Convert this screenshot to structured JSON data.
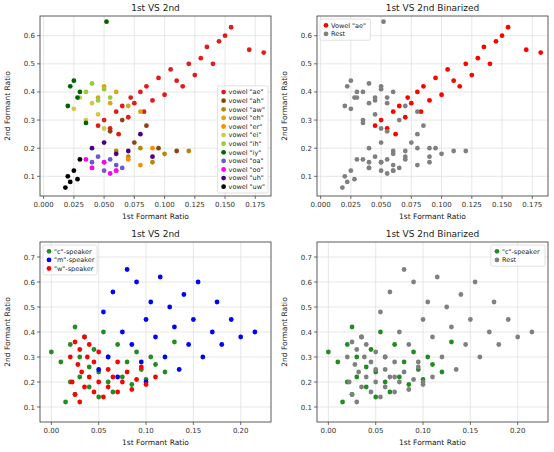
{
  "chart_data": [
    {
      "type": "scatter",
      "title": "1st VS 2nd",
      "x_label": "1st Formant Ratio",
      "y_label": "2nd Formant Ratio",
      "xlim": [
        -0.003,
        0.188
      ],
      "ylim": [
        0.03,
        0.67
      ],
      "xticks": [
        {
          "value": 0,
          "label": "0.000"
        },
        0.025,
        {
          "value": 0.05,
          "label": "0.050"
        },
        0.075,
        {
          "value": 0.1,
          "label": "0.100"
        },
        0.125,
        {
          "value": 0.15,
          "label": "0.150"
        },
        0.175
      ],
      "yticks": [
        0.1,
        0.2,
        0.3,
        0.4,
        0.5,
        0.6
      ],
      "grid": true,
      "legend": "lower right",
      "marker": "circle",
      "series": [
        {
          "name": "vowel \"ae\"",
          "color": "#e31a1c",
          "x": [
            0.045,
            0.05,
            0.055,
            0.06,
            0.062,
            0.065,
            0.07,
            0.072,
            0.075,
            0.08,
            0.083,
            0.085,
            0.09,
            0.095,
            0.1,
            0.105,
            0.11,
            0.115,
            0.12,
            0.125,
            0.13,
            0.135,
            0.14,
            0.145,
            0.15,
            0.155,
            0.17,
            0.182
          ],
          "values": [
            0.28,
            0.3,
            0.27,
            0.33,
            0.25,
            0.35,
            0.31,
            0.38,
            0.36,
            0.4,
            0.33,
            0.42,
            0.37,
            0.45,
            0.39,
            0.48,
            0.44,
            0.42,
            0.5,
            0.46,
            0.52,
            0.56,
            0.5,
            0.58,
            0.6,
            0.63,
            0.55,
            0.54
          ]
        },
        {
          "name": "vowel \"ah\"",
          "color": "#8b4513",
          "x": [
            0.055,
            0.065,
            0.075,
            0.085,
            0.095,
            0.11
          ],
          "values": [
            0.26,
            0.3,
            0.22,
            0.28,
            0.2,
            0.19
          ]
        },
        {
          "name": "vowel \"aw\"",
          "color": "#b8860b",
          "x": [
            0.06,
            0.07,
            0.08,
            0.09,
            0.1,
            0.12
          ],
          "values": [
            0.19,
            0.17,
            0.2,
            0.15,
            0.18,
            0.19
          ]
        },
        {
          "name": "vowel \"eh\"",
          "color": "#daa520",
          "x": [
            0.045,
            0.05,
            0.055,
            0.06,
            0.07,
            0.08
          ],
          "values": [
            0.38,
            0.42,
            0.36,
            0.4,
            0.35,
            0.33
          ]
        },
        {
          "name": "vowel \"er\"",
          "color": "#ff8c00",
          "x": [
            0.04,
            0.05,
            0.06,
            0.07,
            0.08,
            0.09
          ],
          "values": [
            0.13,
            0.15,
            0.12,
            0.16,
            0.14,
            0.2
          ]
        },
        {
          "name": "vowel \"ei\"",
          "color": "#d4c84a",
          "x": [
            0.025,
            0.03,
            0.035,
            0.04,
            0.045,
            0.05
          ],
          "values": [
            0.34,
            0.38,
            0.3,
            0.36,
            0.32,
            0.27
          ]
        },
        {
          "name": "vowel \"ih\"",
          "color": "#9acd32",
          "x": [
            0.035,
            0.04,
            0.045,
            0.05,
            0.055
          ],
          "values": [
            0.4,
            0.43,
            0.37,
            0.41,
            0.38
          ]
        },
        {
          "name": "vowel \"iy\"",
          "color": "#006400",
          "x": [
            0.02,
            0.022,
            0.025,
            0.028,
            0.03,
            0.035,
            0.052
          ],
          "values": [
            0.35,
            0.42,
            0.44,
            0.38,
            0.4,
            0.29,
            0.65
          ]
        },
        {
          "name": "vowel \"oa\"",
          "color": "#6a5acd",
          "x": [
            0.04,
            0.045,
            0.05,
            0.055,
            0.06,
            0.065
          ],
          "values": [
            0.15,
            0.17,
            0.12,
            0.16,
            0.14,
            0.13
          ]
        },
        {
          "name": "vowel \"oo\"",
          "color": "#ff00ff",
          "x": [
            0.035,
            0.04,
            0.05,
            0.055,
            0.06
          ],
          "values": [
            0.16,
            0.13,
            0.15,
            0.11,
            0.12
          ]
        },
        {
          "name": "vowel \"uh\"",
          "color": "#4b0082",
          "x": [
            0.04,
            0.05,
            0.06,
            0.07,
            0.08,
            0.09
          ],
          "values": [
            0.2,
            0.22,
            0.18,
            0.19,
            0.25,
            0.17
          ]
        },
        {
          "name": "vowel \"uw\"",
          "color": "#000000",
          "x": [
            0.018,
            0.02,
            0.022,
            0.025,
            0.028,
            0.03
          ],
          "values": [
            0.06,
            0.1,
            0.08,
            0.12,
            0.09,
            0.16
          ]
        }
      ]
    },
    {
      "type": "scatter",
      "title": "1st VS 2nd Binarized",
      "x_label": "1st Formant Ratio",
      "y_label": "2nd Formant Ratio",
      "xlim": [
        -0.003,
        0.188
      ],
      "ylim": [
        0.03,
        0.67
      ],
      "xticks": [
        {
          "value": 0,
          "label": "0.000"
        },
        0.025,
        {
          "value": 0.05,
          "label": "0.050"
        },
        0.075,
        {
          "value": 0.1,
          "label": "0.100"
        },
        0.125,
        {
          "value": 0.15,
          "label": "0.150"
        },
        0.175
      ],
      "yticks": [
        0.1,
        0.2,
        0.3,
        0.4,
        0.5,
        0.6
      ],
      "grid": true,
      "legend": "upper left",
      "marker": "circle",
      "series": [
        {
          "name": "Vowel \"ae\"",
          "color": "#ff0000",
          "x": [
            0.045,
            0.05,
            0.055,
            0.06,
            0.062,
            0.065,
            0.07,
            0.072,
            0.075,
            0.08,
            0.083,
            0.085,
            0.09,
            0.095,
            0.1,
            0.105,
            0.11,
            0.115,
            0.12,
            0.125,
            0.13,
            0.135,
            0.14,
            0.145,
            0.15,
            0.155,
            0.17,
            0.182
          ],
          "values": [
            0.28,
            0.3,
            0.27,
            0.33,
            0.25,
            0.35,
            0.31,
            0.38,
            0.36,
            0.4,
            0.33,
            0.42,
            0.37,
            0.45,
            0.39,
            0.48,
            0.44,
            0.42,
            0.5,
            0.46,
            0.52,
            0.56,
            0.5,
            0.58,
            0.6,
            0.63,
            0.55,
            0.54
          ]
        },
        {
          "name": "Rest",
          "color": "#808080",
          "x": [
            0.055,
            0.065,
            0.075,
            0.085,
            0.095,
            0.11,
            0.06,
            0.07,
            0.08,
            0.09,
            0.1,
            0.12,
            0.045,
            0.05,
            0.055,
            0.06,
            0.07,
            0.08,
            0.04,
            0.05,
            0.06,
            0.07,
            0.08,
            0.09,
            0.025,
            0.03,
            0.035,
            0.04,
            0.045,
            0.05,
            0.035,
            0.04,
            0.045,
            0.05,
            0.055,
            0.02,
            0.022,
            0.025,
            0.028,
            0.03,
            0.035,
            0.052,
            0.04,
            0.045,
            0.05,
            0.055,
            0.06,
            0.065,
            0.035,
            0.04,
            0.05,
            0.055,
            0.06,
            0.04,
            0.05,
            0.06,
            0.07,
            0.08,
            0.09,
            0.018,
            0.02,
            0.022,
            0.025,
            0.028,
            0.03
          ],
          "values": [
            0.26,
            0.3,
            0.22,
            0.28,
            0.2,
            0.19,
            0.19,
            0.17,
            0.2,
            0.15,
            0.18,
            0.19,
            0.38,
            0.42,
            0.36,
            0.4,
            0.35,
            0.33,
            0.13,
            0.15,
            0.12,
            0.16,
            0.14,
            0.2,
            0.34,
            0.38,
            0.3,
            0.36,
            0.32,
            0.27,
            0.4,
            0.43,
            0.37,
            0.41,
            0.38,
            0.35,
            0.42,
            0.44,
            0.38,
            0.4,
            0.29,
            0.65,
            0.15,
            0.17,
            0.12,
            0.16,
            0.14,
            0.13,
            0.16,
            0.13,
            0.15,
            0.11,
            0.12,
            0.2,
            0.22,
            0.18,
            0.19,
            0.25,
            0.17,
            0.06,
            0.1,
            0.08,
            0.12,
            0.09,
            0.16
          ]
        }
      ]
    },
    {
      "type": "scatter",
      "title": "1st VS 2nd",
      "x_label": "1st Formant Ratio",
      "y_label": "2nd Formant Ratio",
      "xlim": [
        -0.012,
        0.232
      ],
      "ylim": [
        0.04,
        0.76
      ],
      "xticks": [
        {
          "value": 0,
          "label": "0.00"
        },
        0.05,
        {
          "value": 0.1,
          "label": "0.10"
        },
        0.15,
        {
          "value": 0.2,
          "label": "0.20"
        }
      ],
      "yticks": [
        0.1,
        0.2,
        0.3,
        0.4,
        0.5,
        0.6,
        0.7
      ],
      "grid": true,
      "legend": "upper left",
      "marker": "circle",
      "series": [
        {
          "name": "\"c\"-speaker",
          "color": "#228b22",
          "x": [
            0.0,
            0.01,
            0.015,
            0.02,
            0.02,
            0.025,
            0.025,
            0.03,
            0.03,
            0.035,
            0.04,
            0.04,
            0.045,
            0.05,
            0.05,
            0.055,
            0.06,
            0.06,
            0.065,
            0.07,
            0.075,
            0.08,
            0.085,
            0.09,
            0.095,
            0.1,
            0.105,
            0.11,
            0.12,
            0.13
          ],
          "values": [
            0.32,
            0.28,
            0.12,
            0.35,
            0.2,
            0.42,
            0.15,
            0.3,
            0.22,
            0.38,
            0.18,
            0.26,
            0.33,
            0.14,
            0.24,
            0.4,
            0.2,
            0.3,
            0.16,
            0.35,
            0.22,
            0.28,
            0.19,
            0.32,
            0.25,
            0.21,
            0.3,
            0.27,
            0.24,
            0.36
          ]
        },
        {
          "name": "\"m\"-speaker",
          "color": "#0000ff",
          "x": [
            0.05,
            0.055,
            0.06,
            0.065,
            0.07,
            0.075,
            0.08,
            0.085,
            0.09,
            0.095,
            0.1,
            0.1,
            0.105,
            0.11,
            0.115,
            0.12,
            0.125,
            0.13,
            0.135,
            0.14,
            0.145,
            0.15,
            0.155,
            0.16,
            0.17,
            0.175,
            0.18,
            0.19,
            0.2,
            0.215
          ],
          "values": [
            0.25,
            0.48,
            0.3,
            0.56,
            0.22,
            0.4,
            0.65,
            0.35,
            0.6,
            0.28,
            0.45,
            0.2,
            0.52,
            0.38,
            0.62,
            0.3,
            0.5,
            0.42,
            0.25,
            0.55,
            0.35,
            0.45,
            0.6,
            0.3,
            0.4,
            0.52,
            0.35,
            0.45,
            0.38,
            0.4
          ]
        },
        {
          "name": "\"w\"-speaker",
          "color": "#ff0000",
          "x": [
            0.02,
            0.022,
            0.025,
            0.025,
            0.028,
            0.03,
            0.03,
            0.032,
            0.035,
            0.035,
            0.038,
            0.04,
            0.04,
            0.045,
            0.045,
            0.05,
            0.05,
            0.055,
            0.06,
            0.06,
            0.065,
            0.07,
            0.07,
            0.075,
            0.08,
            0.085,
            0.09,
            0.095,
            0.1,
            0.11
          ],
          "values": [
            0.3,
            0.2,
            0.36,
            0.15,
            0.27,
            0.33,
            0.12,
            0.24,
            0.38,
            0.18,
            0.3,
            0.22,
            0.35,
            0.16,
            0.28,
            0.2,
            0.32,
            0.14,
            0.25,
            0.18,
            0.22,
            0.16,
            0.28,
            0.2,
            0.24,
            0.17,
            0.21,
            0.26,
            0.19,
            0.22
          ]
        }
      ]
    },
    {
      "type": "scatter",
      "title": "1st VS 2nd Binarized",
      "x_label": "1st Formant Ratio",
      "y_label": "2nd Formant Ratio",
      "xlim": [
        -0.012,
        0.232
      ],
      "ylim": [
        0.04,
        0.76
      ],
      "xticks": [
        {
          "value": 0,
          "label": "0.00"
        },
        0.05,
        {
          "value": 0.1,
          "label": "0.10"
        },
        0.15,
        {
          "value": 0.2,
          "label": "0.20"
        }
      ],
      "yticks": [
        0.1,
        0.2,
        0.3,
        0.4,
        0.5,
        0.6,
        0.7
      ],
      "grid": true,
      "legend": "upper right",
      "marker": "circle",
      "series": [
        {
          "name": "\"c\"-speaker",
          "color": "#228b22",
          "x": [
            0.0,
            0.01,
            0.015,
            0.02,
            0.02,
            0.025,
            0.025,
            0.03,
            0.03,
            0.035,
            0.04,
            0.04,
            0.045,
            0.05,
            0.05,
            0.055,
            0.06,
            0.06,
            0.065,
            0.07,
            0.075,
            0.08,
            0.085,
            0.09,
            0.095,
            0.1,
            0.105,
            0.11,
            0.12,
            0.13
          ],
          "values": [
            0.32,
            0.28,
            0.12,
            0.35,
            0.2,
            0.42,
            0.15,
            0.3,
            0.22,
            0.38,
            0.18,
            0.26,
            0.33,
            0.14,
            0.24,
            0.4,
            0.2,
            0.3,
            0.16,
            0.35,
            0.22,
            0.28,
            0.19,
            0.32,
            0.25,
            0.21,
            0.3,
            0.27,
            0.24,
            0.36
          ]
        },
        {
          "name": "Rest",
          "color": "#808080",
          "x": [
            0.05,
            0.055,
            0.06,
            0.065,
            0.07,
            0.075,
            0.08,
            0.085,
            0.09,
            0.095,
            0.1,
            0.1,
            0.105,
            0.11,
            0.115,
            0.12,
            0.125,
            0.13,
            0.135,
            0.14,
            0.145,
            0.15,
            0.155,
            0.16,
            0.17,
            0.175,
            0.18,
            0.19,
            0.2,
            0.215,
            0.02,
            0.022,
            0.025,
            0.025,
            0.028,
            0.03,
            0.03,
            0.032,
            0.035,
            0.035,
            0.038,
            0.04,
            0.04,
            0.045,
            0.045,
            0.05,
            0.05,
            0.055,
            0.06,
            0.06,
            0.065,
            0.07,
            0.07,
            0.075,
            0.08,
            0.085,
            0.09,
            0.095,
            0.1,
            0.11
          ],
          "values": [
            0.25,
            0.48,
            0.3,
            0.56,
            0.22,
            0.4,
            0.65,
            0.35,
            0.6,
            0.28,
            0.45,
            0.2,
            0.52,
            0.38,
            0.62,
            0.3,
            0.5,
            0.42,
            0.25,
            0.55,
            0.35,
            0.45,
            0.6,
            0.3,
            0.4,
            0.52,
            0.35,
            0.45,
            0.38,
            0.4,
            0.3,
            0.2,
            0.36,
            0.15,
            0.27,
            0.33,
            0.12,
            0.24,
            0.38,
            0.18,
            0.3,
            0.22,
            0.35,
            0.16,
            0.28,
            0.2,
            0.32,
            0.14,
            0.25,
            0.18,
            0.22,
            0.16,
            0.28,
            0.2,
            0.24,
            0.17,
            0.21,
            0.26,
            0.19,
            0.22
          ]
        }
      ]
    }
  ]
}
